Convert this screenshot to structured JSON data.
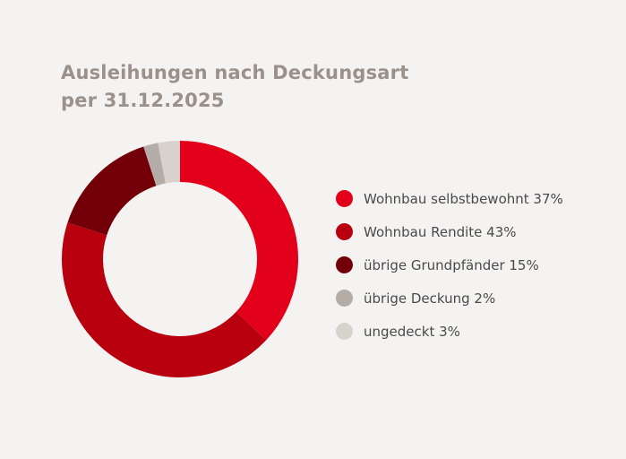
{
  "chart_data": {
    "type": "pie",
    "donut": true,
    "title": "Ausleihungen nach Deckungsart",
    "subtitle": "per 31.12.2025",
    "legend_position": "right",
    "series": [
      {
        "categories": [
          "Wohnbau selbstbewohnt",
          "Wohnbau Rendite",
          "übrige Grundpfänder",
          "übrige Deckung",
          "ungedeckt"
        ],
        "values": [
          37,
          43,
          15,
          2,
          3
        ],
        "unit": "%"
      }
    ],
    "slices": [
      {
        "label": "Wohnbau selbstbewohnt",
        "value": 37,
        "legend_text": "Wohnbau selbstbewohnt 37%",
        "color": "#e2001a"
      },
      {
        "label": "Wohnbau Rendite",
        "value": 43,
        "legend_text": "Wohnbau Rendite 43%",
        "color": "#b8000f"
      },
      {
        "label": "übrige Grundpfänder",
        "value": 15,
        "legend_text": "übrige Grundpfänder 15%",
        "color": "#730008"
      },
      {
        "label": "übrige Deckung",
        "value": 2,
        "legend_text": "übrige Deckung 2%",
        "color": "#b4aca6"
      },
      {
        "label": "ungedeckt",
        "value": 3,
        "legend_text": "ungedeckt 3%",
        "color": "#d8d2cd"
      }
    ]
  }
}
